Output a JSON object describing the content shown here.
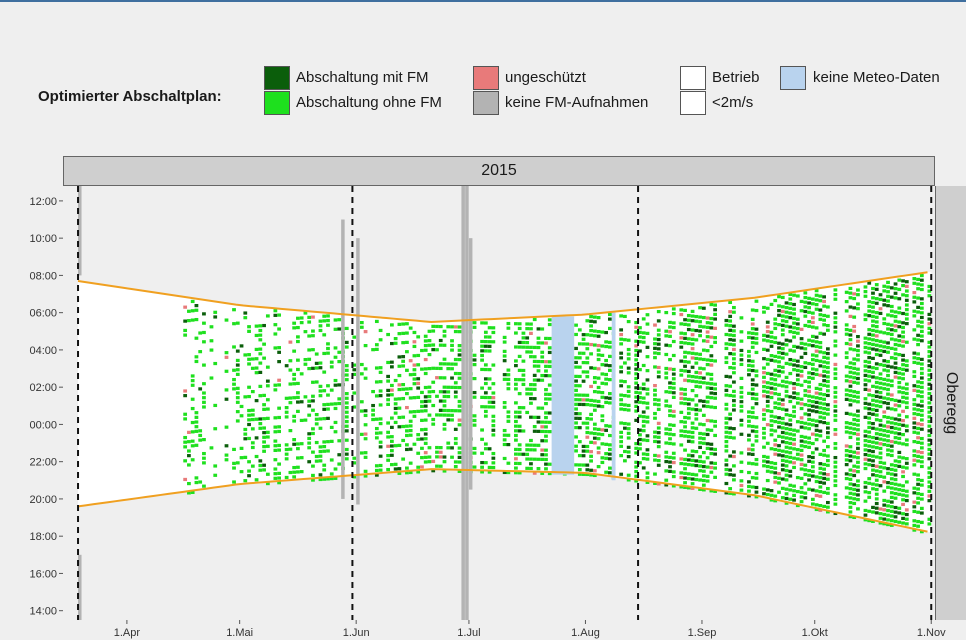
{
  "legend": {
    "title": "Optimierter Abschaltplan:",
    "items": [
      {
        "label": "Abschaltung mit FM",
        "color": "#0b5e0b"
      },
      {
        "label": "Abschaltung ohne FM",
        "color": "#1ee01e"
      },
      {
        "label": "ungeschützt",
        "color": "#e87a7a"
      },
      {
        "label": "keine FM-Aufnahmen",
        "color": "#b3b3b3"
      },
      {
        "label": "Betrieb",
        "color": "#ffffff"
      },
      {
        "label": "<2m/s",
        "color": "#ffffff"
      },
      {
        "label": "keine Meteo-Daten",
        "color": "#b9d3ee"
      }
    ]
  },
  "facet": {
    "top": "2015",
    "right": "Oberegg"
  },
  "chart_data": {
    "type": "heatmap",
    "x_ticks": [
      "1.Apr",
      "1.Mai",
      "1.Jun",
      "1.Jul",
      "1.Aug",
      "1.Sep",
      "1.Okt",
      "1.Nov"
    ],
    "y_ticks": [
      "12:00",
      "10:00",
      "08:00",
      "06:00",
      "04:00",
      "02:00",
      "00:00",
      "22:00",
      "20:00",
      "18:00",
      "16:00",
      "14:00"
    ],
    "x_range": [
      "2015-03-15",
      "2015-11-02"
    ],
    "y_range_hours_relative_to_midnight": [
      -10.5,
      12.8
    ],
    "dashed_lines": [
      "2015-03-19",
      "2015-05-31",
      "2015-08-15",
      "2015-11-01"
    ],
    "sunrise_hours": {
      "2015-03-19": 7.7,
      "2015-05-01": 6.4,
      "2015-06-21": 5.5,
      "2015-08-01": 5.9,
      "2015-09-15": 6.8,
      "2015-11-01": 8.2
    },
    "sunset_hours": {
      "2015-03-19": -4.4,
      "2015-05-01": -3.2,
      "2015-06-21": -2.4,
      "2015-08-01": -2.6,
      "2015-09-15": -3.8,
      "2015-11-01": -5.8
    },
    "no_fm_periods": [
      {
        "date": "2015-03-19",
        "from": 8.0,
        "to": 12.8
      },
      {
        "date": "2015-03-19",
        "from": -10.5,
        "to": -7.0
      },
      {
        "date": "2015-05-28",
        "from": -4.0,
        "to": 11.0
      },
      {
        "date": "2015-06-01",
        "from": -4.3,
        "to": 10.0
      },
      {
        "date": "2015-06-29",
        "from": -10.5,
        "to": 12.8
      },
      {
        "date": "2015-06-30",
        "from": -10.5,
        "to": 12.8
      },
      {
        "date": "2015-07-01",
        "from": -3.5,
        "to": 10.0
      }
    ],
    "no_meteo_periods": [
      {
        "from_date": "2015-07-23",
        "to_date": "2015-07-28",
        "from": -2.7,
        "to": 5.8
      },
      {
        "from_date": "2015-08-08",
        "to_date": "2015-08-08",
        "from": -3.0,
        "to": 6.0
      }
    ]
  }
}
